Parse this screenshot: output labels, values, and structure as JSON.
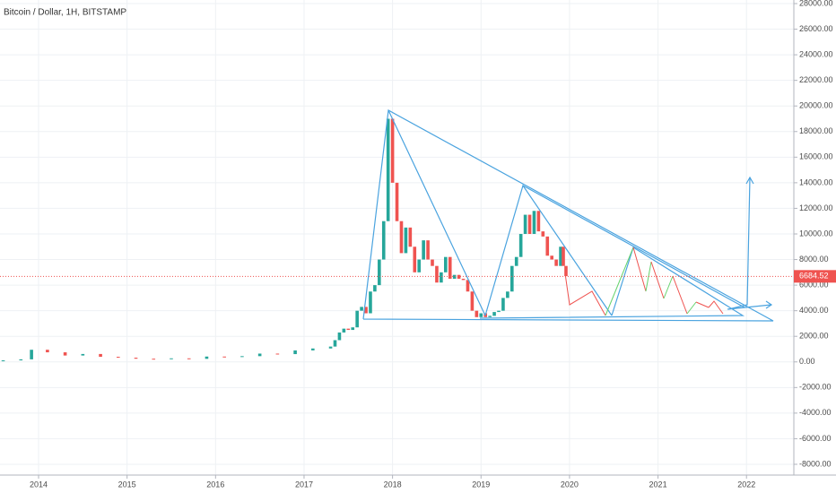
{
  "chart_data": {
    "type": "candlestick",
    "title": "Bitcoin / Dollar, 1H, BITSTAMP",
    "x": [
      2013.6,
      2013.8,
      2013.92,
      2014.1,
      2014.3,
      2014.5,
      2014.7,
      2014.9,
      2015.1,
      2015.3,
      2015.5,
      2015.7,
      2015.9,
      2016.1,
      2016.3,
      2016.5,
      2016.7,
      2016.9,
      2017.1,
      2017.3,
      2017.35,
      2017.4,
      2017.45,
      2017.5,
      2017.55,
      2017.6,
      2017.65,
      2017.7,
      2017.75,
      2017.8,
      2017.85,
      2017.9,
      2017.95,
      2018.0,
      2018.05,
      2018.1,
      2018.15,
      2018.2,
      2018.25,
      2018.3,
      2018.35,
      2018.4,
      2018.45,
      2018.5,
      2018.55,
      2018.6,
      2018.65,
      2018.7,
      2018.75,
      2018.8,
      2018.85,
      2018.9,
      2018.95,
      2019.0,
      2019.05,
      2019.1,
      2019.15,
      2019.2,
      2019.25,
      2019.3,
      2019.35,
      2019.4,
      2019.45,
      2019.5,
      2019.55,
      2019.6,
      2019.65,
      2019.7,
      2019.75,
      2019.8,
      2019.85,
      2019.9,
      2019.93,
      2019.96
    ],
    "open": [
      100,
      120,
      200,
      950,
      750,
      500,
      620,
      400,
      330,
      250,
      230,
      280,
      240,
      420,
      400,
      450,
      650,
      610,
      900,
      1050,
      1200,
      1700,
      2300,
      2600,
      2500,
      2700,
      4000,
      4300,
      3800,
      5500,
      6000,
      8000,
      11000,
      19000,
      14000,
      11000,
      8500,
      10500,
      9000,
      7000,
      8000,
      9500,
      8000,
      7500,
      6200,
      7000,
      8200,
      6500,
      6800,
      6500,
      6400,
      5500,
      4000,
      3500,
      3800,
      3500,
      3600,
      3900,
      4000,
      5000,
      5500,
      7500,
      8200,
      10000,
      11500,
      10000,
      11800,
      10200,
      9800,
      8300,
      8000,
      7500,
      9000,
      7500
    ],
    "close": [
      120,
      200,
      950,
      750,
      500,
      620,
      400,
      330,
      250,
      230,
      280,
      240,
      420,
      400,
      450,
      650,
      610,
      900,
      1050,
      1200,
      1700,
      2300,
      2600,
      2500,
      2700,
      4000,
      4300,
      3800,
      5500,
      6000,
      8000,
      11000,
      19000,
      14000,
      11000,
      8500,
      10500,
      9000,
      7000,
      8000,
      9500,
      8000,
      7500,
      6200,
      7000,
      8200,
      6500,
      6800,
      6500,
      6400,
      5500,
      4000,
      3500,
      3800,
      3500,
      3600,
      3900,
      4000,
      5000,
      5500,
      7500,
      8200,
      10000,
      11500,
      10000,
      11800,
      10200,
      9800,
      8300,
      8000,
      7500,
      9000,
      7500,
      6700
    ],
    "up_color": "#26a69a",
    "down_color": "#ef5350",
    "last_price": 6684.52,
    "last_price_color": "#ef5350",
    "xlim": [
      2013.564,
      2022.535
    ],
    "xticks": [
      2014,
      2015,
      2016,
      2017,
      2018,
      2019,
      2020,
      2021,
      2022
    ],
    "ylim": [
      -8842,
      28280
    ],
    "yticks": [
      {
        "value": 28000,
        "label": "28000.00"
      },
      {
        "value": 26000,
        "label": "26000.00"
      },
      {
        "value": 24000,
        "label": "24000.00"
      },
      {
        "value": 22000,
        "label": "22000.00"
      },
      {
        "value": 20000,
        "label": "20000.00"
      },
      {
        "value": 18000,
        "label": "18000.00"
      },
      {
        "value": 16000,
        "label": "16000.00"
      },
      {
        "value": 14000,
        "label": "14000.00"
      },
      {
        "value": 12000,
        "label": "12000.00"
      },
      {
        "value": 10000,
        "label": "10000.00"
      },
      {
        "value": 8000,
        "label": "8000.00"
      },
      {
        "value": 6000,
        "label": "6000.00"
      },
      {
        "value": 4000,
        "label": "4000.00"
      },
      {
        "value": 2000,
        "label": "2000.00"
      },
      {
        "value": 0,
        "label": "0.00"
      },
      {
        "value": -2000,
        "label": "-2000.00"
      },
      {
        "value": -4000,
        "label": "-4000.00"
      },
      {
        "value": -6000,
        "label": "-6000.00"
      },
      {
        "value": -8000,
        "label": "-8000.00"
      }
    ],
    "grid": true
  }
}
